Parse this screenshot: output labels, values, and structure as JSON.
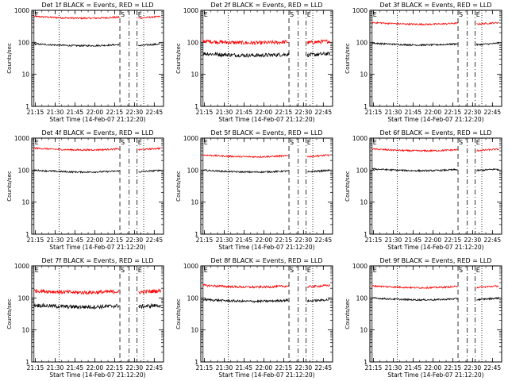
{
  "chart_data": {
    "type": "line",
    "xlabel": "Start Time (14-Feb-07 21:12:20)",
    "ylabel": "Counts/sec",
    "x_tick_labels": [
      "21:15",
      "21:30",
      "21:45",
      "22:00",
      "22:15",
      "22:30",
      "22:45"
    ],
    "x_ticks_minutes_after_2100": [
      15,
      30,
      45,
      60,
      75,
      90,
      105
    ],
    "xlim": [
      "21:12:20",
      "22:52"
    ],
    "y_scale": "log",
    "ylim": [
      1,
      1000
    ],
    "y_tick_labels": [
      "1",
      "10",
      "100",
      "1000"
    ],
    "colors": {
      "events": "#000000",
      "lld": "#ff0000"
    },
    "markers": [
      {
        "label": "E",
        "time": "21:14",
        "style": "solid"
      },
      {
        "label": "",
        "time": "21:33",
        "style": "dotted"
      },
      {
        "label": "S",
        "time": "22:19",
        "style": "dashed"
      },
      {
        "label": "",
        "time": "22:26",
        "style": "dashdot"
      },
      {
        "label": "E",
        "time": "22:32",
        "style": "dashdot"
      },
      {
        "label": "",
        "time": "22:37",
        "style": "dotted"
      }
    ],
    "panels": [
      {
        "title": "Det 1f BLACK = Events, RED = LLD",
        "events_level": 90,
        "lld_level": 650,
        "events_noise": 0.05,
        "lld_noise": 0.05
      },
      {
        "title": "Det 2f BLACK = Events, RED = LLD",
        "events_level": 45,
        "lld_level": 110,
        "events_noise": 0.12,
        "lld_noise": 0.12
      },
      {
        "title": "Det 3f BLACK = Events, RED = LLD",
        "events_level": 95,
        "lld_level": 420,
        "events_noise": 0.05,
        "lld_noise": 0.05
      },
      {
        "title": "Det 4f BLACK = Events, RED = LLD",
        "events_level": 100,
        "lld_level": 490,
        "events_noise": 0.05,
        "lld_noise": 0.05
      },
      {
        "title": "Det 5f BLACK = Events, RED = LLD",
        "events_level": 100,
        "lld_level": 300,
        "events_noise": 0.05,
        "lld_noise": 0.05
      },
      {
        "title": "Det 6f BLACK = Events, RED = LLD",
        "events_level": 110,
        "lld_level": 460,
        "events_noise": 0.05,
        "lld_noise": 0.05
      },
      {
        "title": "Det 7f BLACK = Events, RED = LLD",
        "events_level": 60,
        "lld_level": 170,
        "events_noise": 0.12,
        "lld_noise": 0.12
      },
      {
        "title": "Det 8f BLACK = Events, RED = LLD",
        "events_level": 90,
        "lld_level": 250,
        "events_noise": 0.07,
        "lld_noise": 0.07
      },
      {
        "title": "Det 9f BLACK = Events, RED = LLD",
        "events_level": 100,
        "lld_level": 240,
        "events_noise": 0.05,
        "lld_noise": 0.05
      }
    ]
  }
}
